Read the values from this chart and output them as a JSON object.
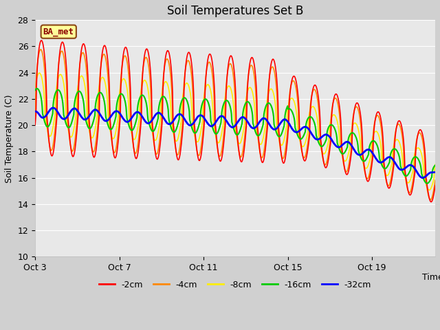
{
  "title": "Soil Temperatures Set B",
  "xlabel": "Time",
  "ylabel": "Soil Temperature (C)",
  "ylim": [
    10,
    28
  ],
  "yticks": [
    10,
    12,
    14,
    16,
    18,
    20,
    22,
    24,
    26,
    28
  ],
  "xtick_labels": [
    "Oct 3",
    "Oct 7",
    "Oct 11",
    "Oct 15",
    "Oct 19"
  ],
  "fig_bg_color": "#d0d0d0",
  "plot_bg_color": "#e8e8e8",
  "grid_color": "#ffffff",
  "series_colors": {
    "-2cm": "#ff0000",
    "-4cm": "#ff8800",
    "-8cm": "#ffee00",
    "-16cm": "#00cc00",
    "-32cm": "#0000ff"
  },
  "annotation_text": "BA_met",
  "annotation_box_color": "#ffff99",
  "annotation_border_color": "#8b4513",
  "annotation_text_color": "#8b0000",
  "n_days": 19
}
